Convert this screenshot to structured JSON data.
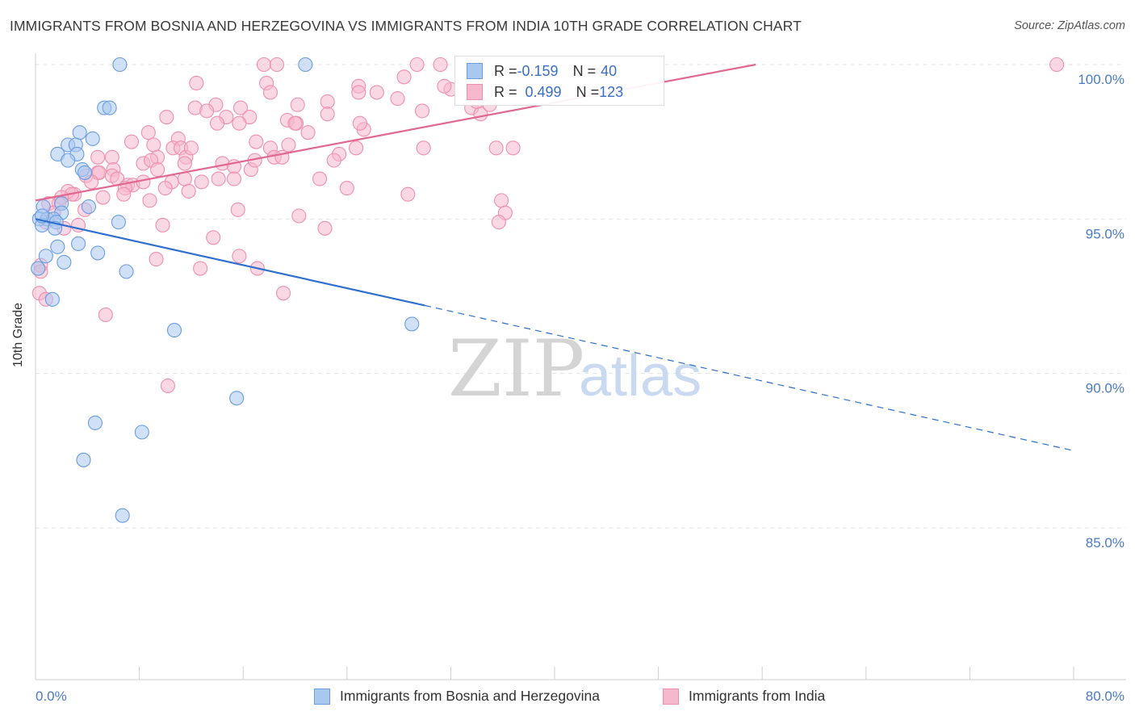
{
  "header": {
    "title": "IMMIGRANTS FROM BOSNIA AND HERZEGOVINA VS IMMIGRANTS FROM INDIA 10TH GRADE CORRELATION CHART",
    "source": "Source: ZipAtlas.com"
  },
  "watermark": {
    "zip": "ZIP",
    "atlas": "atlas"
  },
  "colors": {
    "blue_fill": "#a9c8f0",
    "blue_stroke": "#6a9de0",
    "blue_line": "#2f6fd0",
    "pink_fill": "#f6b8cc",
    "pink_stroke": "#ee8fb0",
    "pink_line": "#e06891",
    "tick_text": "#4a7bc8",
    "grid": "#e3e3e3"
  },
  "legend": {
    "rows": [
      {
        "r_label": "R = ",
        "r_value": "-0.159",
        "n_label": "N = ",
        "n_value": "40"
      },
      {
        "r_label": "R = ",
        "r_value": "0.499",
        "n_label": "N = ",
        "n_value": "123"
      }
    ]
  },
  "bottom_legend": {
    "items": [
      "Immigrants from Bosnia and Herzegovina",
      "Immigrants from India"
    ]
  },
  "chart_data": {
    "type": "scatter",
    "title": "IMMIGRANTS FROM BOSNIA AND HERZEGOVINA VS IMMIGRANTS FROM INDIA 10TH GRADE CORRELATION CHART",
    "xlabel": "",
    "ylabel": "10th Grade",
    "xlim": [
      0,
      80
    ],
    "ylim": [
      80.5,
      100.8
    ],
    "x_tick_labels": [
      "0.0%",
      "80.0%"
    ],
    "y_ticks": [
      85,
      90,
      95,
      100
    ],
    "y_tick_labels": [
      "85.0%",
      "90.0%",
      "95.0%",
      "100.0%"
    ],
    "grid": true,
    "series": [
      {
        "name": "Immigrants from Bosnia and Herzegovina",
        "r": -0.159,
        "n": 40,
        "trend": {
          "solid": [
            [
              0,
              95.0
            ],
            [
              30,
              92.2
            ]
          ],
          "dashed": [
            [
              30,
              92.2
            ],
            [
              80,
              87.5
            ]
          ]
        },
        "points": [
          [
            6.5,
            100.0
          ],
          [
            20.8,
            100.0
          ],
          [
            5.3,
            98.6
          ],
          [
            5.7,
            98.6
          ],
          [
            3.4,
            97.8
          ],
          [
            4.4,
            97.6
          ],
          [
            2.5,
            97.4
          ],
          [
            3.1,
            97.4
          ],
          [
            1.7,
            97.1
          ],
          [
            3.2,
            97.1
          ],
          [
            2.5,
            96.9
          ],
          [
            3.6,
            96.6
          ],
          [
            3.8,
            96.5
          ],
          [
            0.6,
            95.4
          ],
          [
            2.0,
            95.5
          ],
          [
            2.0,
            95.2
          ],
          [
            4.1,
            95.4
          ],
          [
            0.3,
            95.0
          ],
          [
            0.9,
            95.0
          ],
          [
            1.4,
            95.0
          ],
          [
            1.6,
            94.9
          ],
          [
            0.5,
            94.8
          ],
          [
            6.4,
            94.9
          ],
          [
            1.5,
            94.7
          ],
          [
            1.7,
            94.1
          ],
          [
            3.3,
            94.2
          ],
          [
            4.8,
            93.9
          ],
          [
            0.8,
            93.8
          ],
          [
            2.2,
            93.6
          ],
          [
            7.0,
            93.3
          ],
          [
            0.2,
            93.4
          ],
          [
            1.3,
            92.4
          ],
          [
            29.0,
            91.6
          ],
          [
            10.7,
            91.4
          ],
          [
            15.5,
            89.2
          ],
          [
            4.6,
            88.4
          ],
          [
            8.2,
            88.1
          ],
          [
            3.7,
            87.2
          ],
          [
            6.7,
            85.4
          ],
          [
            0.5,
            95.1
          ]
        ]
      },
      {
        "name": "Immigrants from India",
        "r": 0.499,
        "n": 123,
        "trend": {
          "solid": [
            [
              0,
              95.6
            ],
            [
              55.5,
              100.0
            ]
          ]
        },
        "points": [
          [
            17.6,
            100.0
          ],
          [
            18.6,
            100.0
          ],
          [
            29.4,
            100.0
          ],
          [
            31.2,
            100.0
          ],
          [
            78.7,
            100.0
          ],
          [
            17.8,
            99.4
          ],
          [
            12.4,
            99.4
          ],
          [
            24.9,
            99.3
          ],
          [
            28.4,
            99.6
          ],
          [
            18.1,
            99.1
          ],
          [
            24.9,
            99.1
          ],
          [
            20.2,
            98.7
          ],
          [
            22.5,
            98.8
          ],
          [
            27.9,
            98.9
          ],
          [
            13.9,
            98.7
          ],
          [
            12.3,
            98.6
          ],
          [
            15.8,
            98.6
          ],
          [
            33.6,
            98.6
          ],
          [
            34.3,
            98.4
          ],
          [
            35.0,
            98.7
          ],
          [
            13.2,
            98.5
          ],
          [
            14.7,
            98.3
          ],
          [
            16.5,
            98.3
          ],
          [
            29.8,
            98.5
          ],
          [
            10.1,
            98.3
          ],
          [
            19.4,
            98.2
          ],
          [
            20.1,
            98.1
          ],
          [
            22.5,
            98.4
          ],
          [
            15.7,
            98.1
          ],
          [
            14.0,
            98.1
          ],
          [
            25.3,
            97.9
          ],
          [
            8.7,
            97.8
          ],
          [
            11.0,
            97.6
          ],
          [
            17.0,
            97.5
          ],
          [
            7.4,
            97.5
          ],
          [
            9.1,
            97.4
          ],
          [
            10.6,
            97.3
          ],
          [
            11.2,
            97.3
          ],
          [
            29.9,
            97.3
          ],
          [
            35.5,
            97.3
          ],
          [
            18.1,
            97.3
          ],
          [
            19.5,
            97.4
          ],
          [
            24.7,
            97.3
          ],
          [
            23.4,
            97.1
          ],
          [
            9.4,
            97.0
          ],
          [
            11.6,
            97.0
          ],
          [
            18.4,
            97.0
          ],
          [
            19.0,
            97.0
          ],
          [
            5.9,
            97.0
          ],
          [
            4.8,
            97.0
          ],
          [
            8.3,
            96.8
          ],
          [
            8.9,
            96.9
          ],
          [
            9.4,
            96.6
          ],
          [
            11.5,
            96.8
          ],
          [
            14.4,
            96.8
          ],
          [
            15.3,
            96.7
          ],
          [
            16.6,
            96.6
          ],
          [
            23.0,
            96.9
          ],
          [
            6.0,
            96.6
          ],
          [
            4.8,
            96.5
          ],
          [
            3.9,
            96.4
          ],
          [
            4.9,
            96.5
          ],
          [
            5.9,
            96.4
          ],
          [
            6.3,
            96.3
          ],
          [
            7.1,
            96.1
          ],
          [
            7.5,
            96.1
          ],
          [
            8.3,
            96.2
          ],
          [
            10.5,
            96.2
          ],
          [
            11.5,
            96.3
          ],
          [
            12.8,
            96.2
          ],
          [
            14.1,
            96.3
          ],
          [
            15.3,
            96.3
          ],
          [
            4.3,
            96.2
          ],
          [
            10.0,
            96.0
          ],
          [
            6.9,
            96.0
          ],
          [
            11.8,
            95.9
          ],
          [
            6.8,
            95.8
          ],
          [
            3.0,
            95.8
          ],
          [
            2.5,
            95.9
          ],
          [
            2.8,
            95.8
          ],
          [
            2.0,
            95.7
          ],
          [
            8.8,
            95.6
          ],
          [
            5.2,
            95.7
          ],
          [
            1.8,
            95.5
          ],
          [
            1.0,
            95.5
          ],
          [
            28.7,
            95.8
          ],
          [
            35.9,
            95.6
          ],
          [
            15.6,
            95.3
          ],
          [
            20.3,
            95.1
          ],
          [
            36.2,
            95.2
          ],
          [
            35.7,
            94.9
          ],
          [
            22.3,
            94.7
          ],
          [
            9.8,
            94.8
          ],
          [
            2.2,
            94.7
          ],
          [
            1.4,
            95.2
          ],
          [
            0.8,
            94.9
          ],
          [
            13.7,
            94.4
          ],
          [
            15.7,
            93.8
          ],
          [
            9.3,
            93.7
          ],
          [
            17.1,
            93.4
          ],
          [
            12.7,
            93.4
          ],
          [
            19.1,
            92.6
          ],
          [
            5.4,
            91.9
          ],
          [
            10.2,
            89.6
          ],
          [
            0.4,
            93.5
          ],
          [
            0.3,
            92.6
          ],
          [
            0.4,
            93.3
          ],
          [
            0.8,
            92.4
          ],
          [
            3.8,
            95.3
          ],
          [
            24.0,
            96.0
          ],
          [
            21.9,
            96.3
          ],
          [
            12.0,
            97.3
          ],
          [
            25.0,
            98.1
          ],
          [
            21.0,
            97.8
          ],
          [
            36.8,
            97.3
          ],
          [
            33.9,
            99.0
          ],
          [
            34.0,
            98.8
          ],
          [
            32.0,
            99.2
          ],
          [
            26.3,
            99.1
          ],
          [
            31.5,
            99.3
          ],
          [
            20.0,
            98.1
          ],
          [
            3.3,
            94.8
          ],
          [
            16.9,
            96.9
          ]
        ]
      }
    ]
  }
}
